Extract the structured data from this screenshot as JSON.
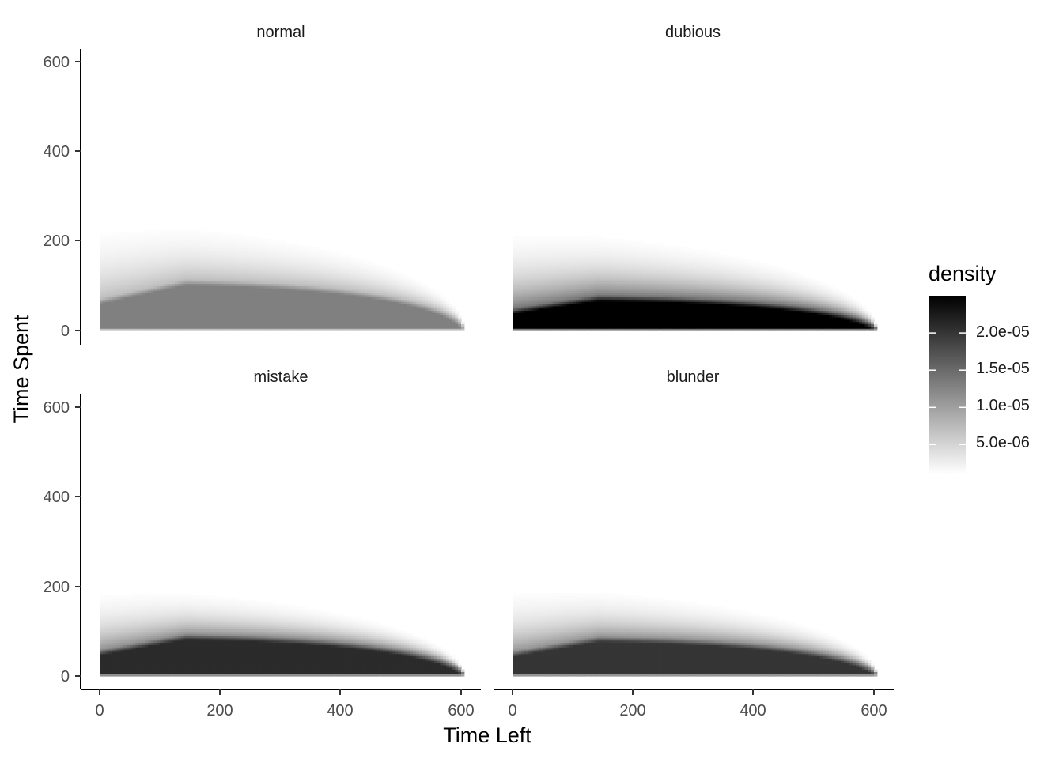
{
  "chart_data": {
    "type": "heatmap",
    "xlabel": "Time Left",
    "ylabel": "Time Spent",
    "xlim": [
      -35,
      635
    ],
    "ylim": [
      -30,
      630
    ],
    "x_ticks": [
      0,
      200,
      400,
      600
    ],
    "y_ticks": [
      0,
      200,
      400,
      600
    ],
    "facet_layout": "2x2",
    "grid": false,
    "panels": [
      {
        "name": "normal",
        "peak_density": 1.3e-05,
        "core_height": 115,
        "tail_height": 330,
        "x_max": 605
      },
      {
        "name": "dubious",
        "peak_density": 2.5e-05,
        "core_height": 80,
        "tail_height": 260,
        "x_max": 605
      },
      {
        "name": "mistake",
        "peak_density": 2.1e-05,
        "core_height": 95,
        "tail_height": 230,
        "x_max": 605
      },
      {
        "name": "blunder",
        "peak_density": 2e-05,
        "core_height": 90,
        "tail_height": 240,
        "x_max": 605
      }
    ],
    "legend": {
      "title": "density",
      "position": "right",
      "range": [
        1e-06,
        2.5e-05
      ],
      "breaks": [
        5e-06,
        1e-05,
        1.5e-05,
        2e-05
      ],
      "labels": [
        "5.0e-06",
        "1.0e-05",
        "1.5e-05",
        "2.0e-05"
      ],
      "low_color": "#ffffff",
      "high_color": "#000000"
    }
  }
}
